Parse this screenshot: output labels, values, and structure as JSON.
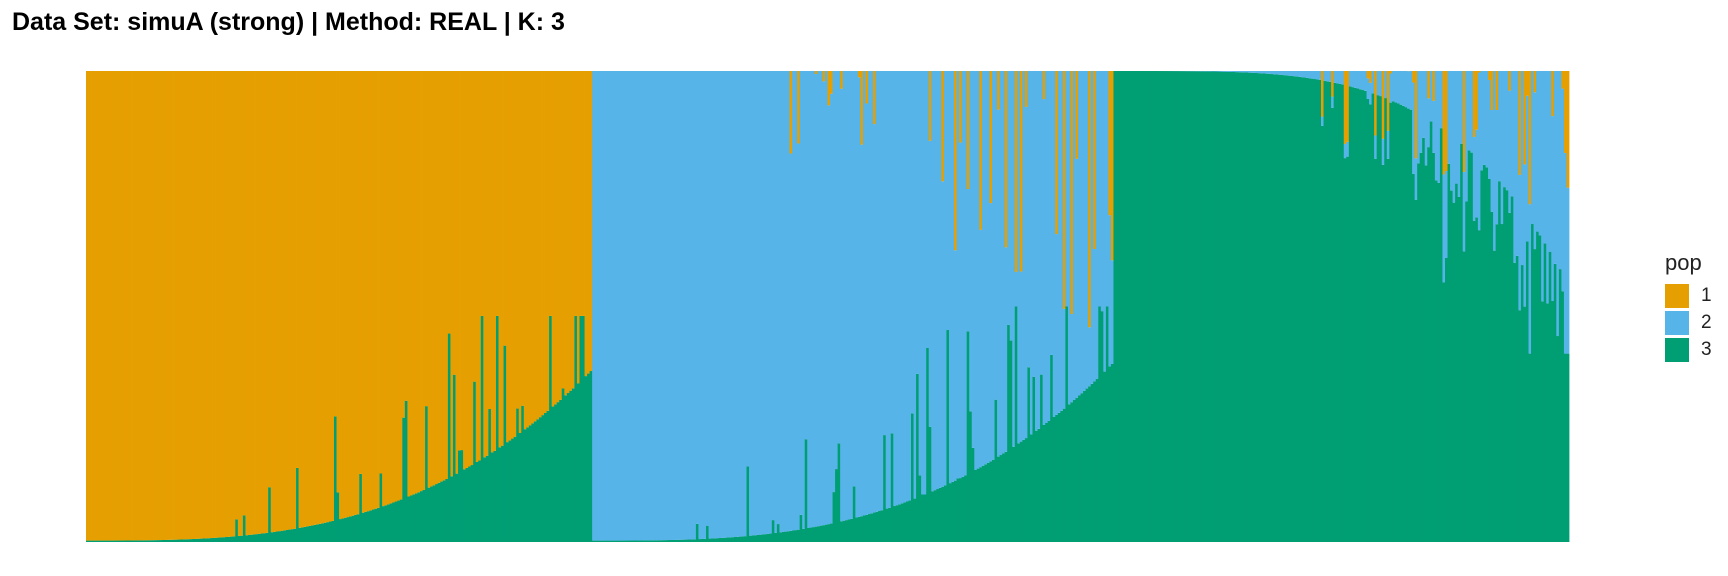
{
  "chart_data": {
    "type": "bar",
    "title": "Data Set: simuA (strong) | Method: REAL | K: 3",
    "stacked": true,
    "y_range": [
      0,
      1
    ],
    "legend": {
      "title": "pop",
      "placement": "right",
      "entries": [
        {
          "label": "1",
          "color": "#E69F00"
        },
        {
          "label": "2",
          "color": "#56B4E9"
        },
        {
          "label": "3",
          "color": "#009E73"
        }
      ]
    },
    "groups": [
      {
        "main_pop": "1",
        "n_individuals": 200,
        "pop3_tail_max": 0.48,
        "pop2_tail_max": 0.02
      },
      {
        "main_pop": "2",
        "n_individuals": 206,
        "pop3_tail_max": 0.5,
        "pop1_tail_max": 0.58
      },
      {
        "main_pop": "3",
        "n_individuals": 180,
        "pop2_tail_max": 0.45,
        "pop1_tail_max": 0.33
      }
    ],
    "grid": false,
    "axes_visible": false
  }
}
